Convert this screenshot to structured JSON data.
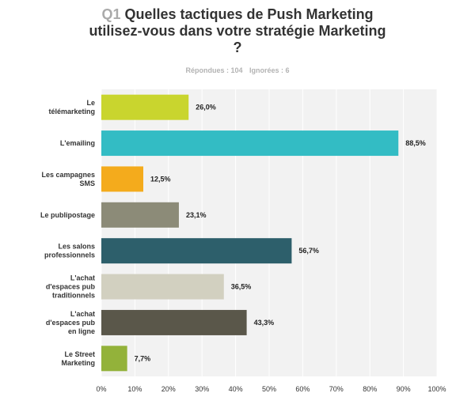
{
  "header": {
    "qnum": "Q1",
    "title_line1": "Quelles tactiques de Push Marketing",
    "title_line2": "utilisez-vous dans votre stratégie Marketing",
    "title_line3": "?"
  },
  "stats": {
    "answered": "Répondues : 104",
    "skipped": "Ignorées : 6"
  },
  "chart_data": {
    "type": "bar",
    "orientation": "horizontal",
    "categories": [
      [
        "Le",
        "télémarketing"
      ],
      [
        "L'emailing"
      ],
      [
        "Les campagnes",
        "SMS"
      ],
      [
        "Le publipostage"
      ],
      [
        "Les salons",
        "professionnels"
      ],
      [
        "L'achat",
        "d'espaces pub",
        "traditionnels"
      ],
      [
        "L'achat",
        "d'espaces pub",
        "en ligne"
      ],
      [
        "Le Street",
        "Marketing"
      ]
    ],
    "values": [
      26.0,
      88.5,
      12.5,
      23.1,
      56.7,
      36.5,
      43.3,
      7.7
    ],
    "value_labels": [
      "26,0%",
      "88,5%",
      "12,5%",
      "23,1%",
      "56,7%",
      "36,5%",
      "43,3%",
      "7,7%"
    ],
    "colors": [
      "#c9d52e",
      "#33bcc4",
      "#f4ab1c",
      "#8c8b78",
      "#2d5f6b",
      "#d2d0c0",
      "#5a574a",
      "#93b23a"
    ],
    "xlim": [
      0,
      100
    ],
    "xticks": [
      "0%",
      "10%",
      "20%",
      "30%",
      "40%",
      "50%",
      "60%",
      "70%",
      "80%",
      "90%",
      "100%"
    ],
    "grid": true,
    "plot_background": "#f2f2f2",
    "gridline_color": "#ffffff"
  }
}
